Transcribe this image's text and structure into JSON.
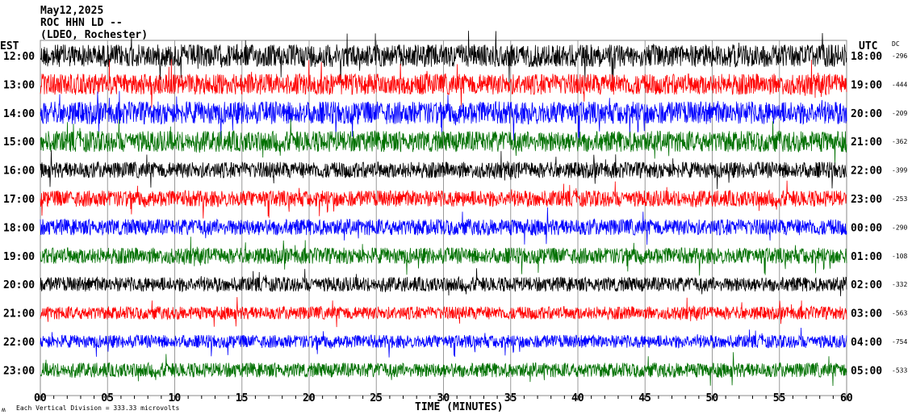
{
  "header": {
    "date": "May12,2025",
    "station": "ROC HHN LD --",
    "location": "(LDEO, Rochester)",
    "left_tz": "EST",
    "right_tz": "UTC",
    "dc_header": "DC"
  },
  "footer": {
    "scale_note": "Each Vertical Division =  333.33 microvolts",
    "mark": "ʍ"
  },
  "chart_data": {
    "type": "line",
    "title": "May12,2025 ROC HHN LD -- (LDEO, Rochester)",
    "xlabel": "TIME (MINUTES)",
    "xlim": [
      0,
      60
    ],
    "x_ticks": [
      "00",
      "05",
      "10",
      "15",
      "20",
      "25",
      "30",
      "35",
      "40",
      "45",
      "50",
      "55",
      "60"
    ],
    "grid": true,
    "rows": [
      {
        "est": "12:00",
        "utc": "18:00",
        "dc": "-296",
        "color": "#000000",
        "amplitude": 1.4
      },
      {
        "est": "13:00",
        "utc": "19:00",
        "dc": "-444",
        "color": "#ff0000",
        "amplitude": 1.3
      },
      {
        "est": "14:00",
        "utc": "20:00",
        "dc": "-209",
        "color": "#0000ff",
        "amplitude": 1.4
      },
      {
        "est": "15:00",
        "utc": "21:00",
        "dc": "-362",
        "color": "#007000",
        "amplitude": 1.3
      },
      {
        "est": "16:00",
        "utc": "22:00",
        "dc": "-399",
        "color": "#000000",
        "amplitude": 1.0
      },
      {
        "est": "17:00",
        "utc": "23:00",
        "dc": "-253",
        "color": "#ff0000",
        "amplitude": 1.0
      },
      {
        "est": "18:00",
        "utc": "00:00",
        "dc": "-290",
        "color": "#0000ff",
        "amplitude": 1.0
      },
      {
        "est": "19:00",
        "utc": "01:00",
        "dc": "-108",
        "color": "#007000",
        "amplitude": 1.0
      },
      {
        "est": "20:00",
        "utc": "02:00",
        "dc": "-332",
        "color": "#000000",
        "amplitude": 0.9
      },
      {
        "est": "21:00",
        "utc": "03:00",
        "dc": "-563",
        "color": "#ff0000",
        "amplitude": 0.8
      },
      {
        "est": "22:00",
        "utc": "04:00",
        "dc": "-754",
        "color": "#0000ff",
        "amplitude": 0.8
      },
      {
        "est": "23:00",
        "utc": "05:00",
        "dc": "-533",
        "color": "#007000",
        "amplitude": 0.9
      }
    ]
  }
}
